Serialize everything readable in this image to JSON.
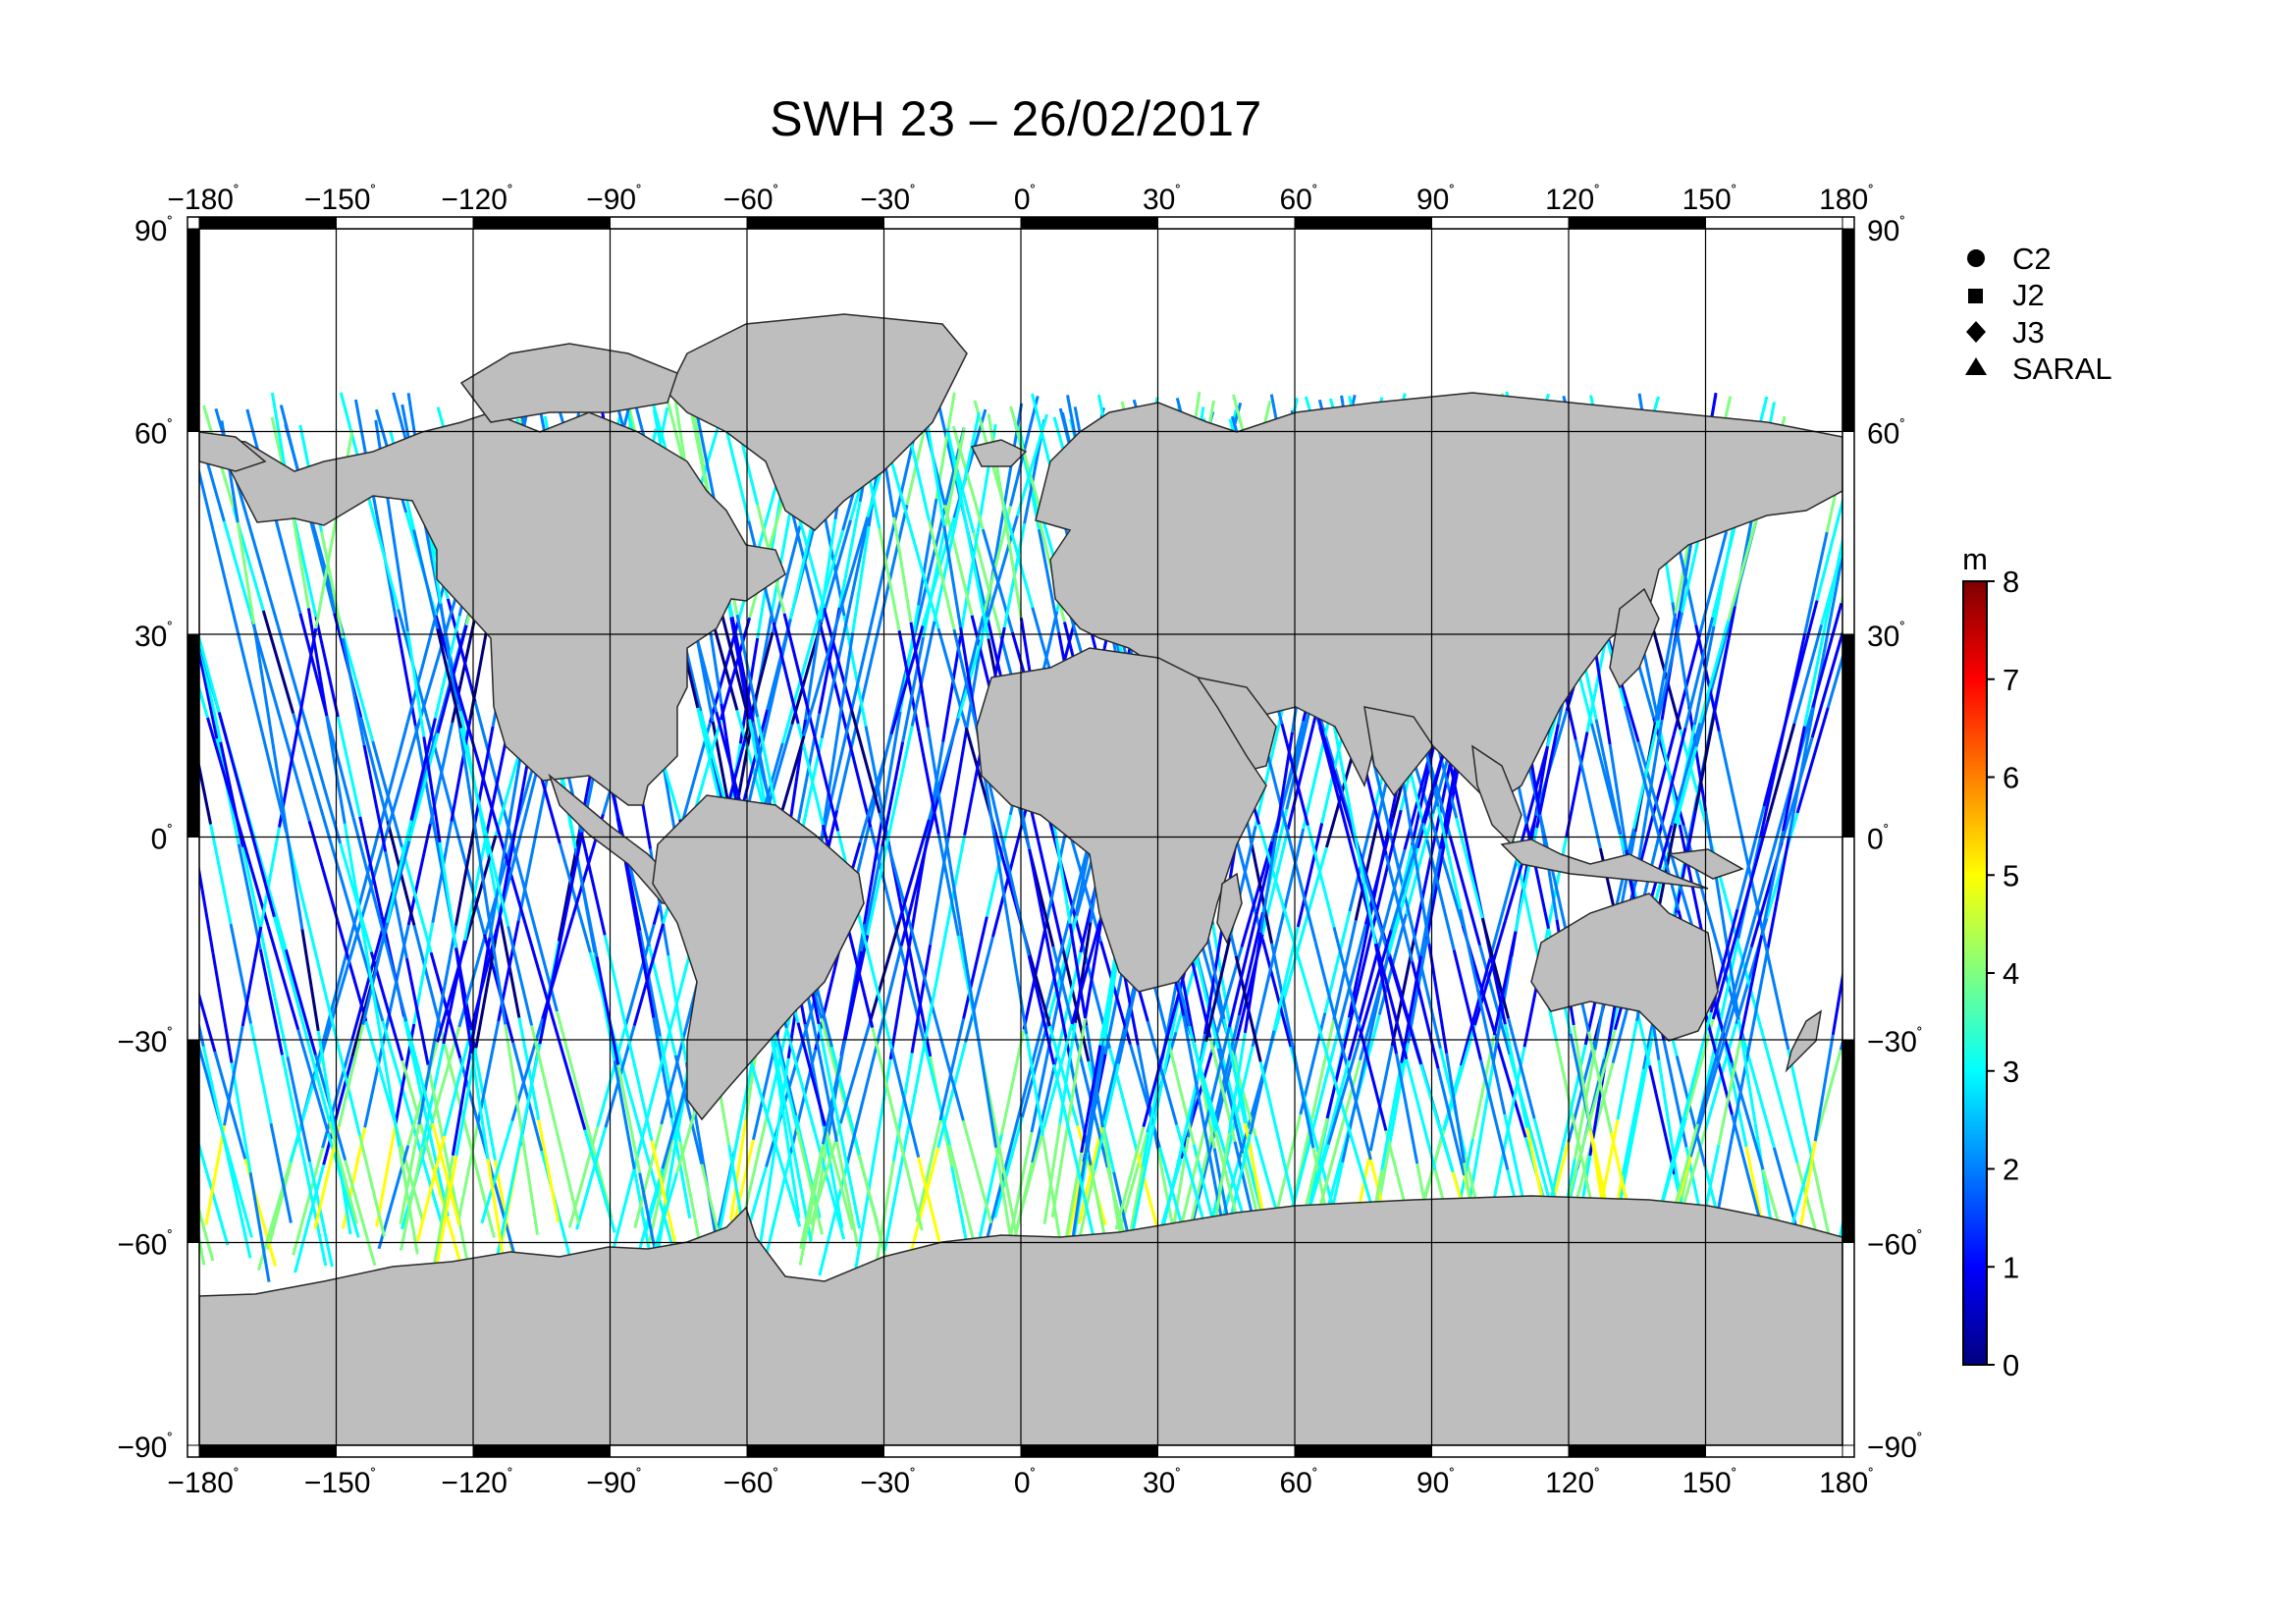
{
  "title": "SWH 23 – 26/02/2017",
  "map": {
    "lon_range": [
      -180,
      180
    ],
    "lat_range": [
      -90,
      90
    ],
    "lon_ticks": [
      -180,
      -150,
      -120,
      -90,
      -60,
      -30,
      0,
      30,
      60,
      90,
      120,
      150,
      180
    ],
    "lat_ticks": [
      90,
      60,
      30,
      0,
      -30,
      -60,
      -90
    ],
    "grid": true,
    "land_color": "#bebebe",
    "frame": "alternating black/white 30-degree segments"
  },
  "legend": {
    "placement": "top-right",
    "items": [
      {
        "symbol": "circle",
        "label": "C2"
      },
      {
        "symbol": "square",
        "label": "J2"
      },
      {
        "symbol": "diamond",
        "label": "J3"
      },
      {
        "symbol": "triangle",
        "label": "SARAL"
      }
    ]
  },
  "colorbar": {
    "unit": "m",
    "min": 0,
    "max": 8,
    "ticks": [
      "0",
      "1",
      "2",
      "3",
      "4",
      "5",
      "6",
      "7",
      "8"
    ],
    "colormap": "jet",
    "colors": [
      "#00007f",
      "#0000ff",
      "#007fff",
      "#00ffff",
      "#7fff7f",
      "#ffff00",
      "#ff7f00",
      "#ff0000",
      "#7f0000"
    ]
  }
}
